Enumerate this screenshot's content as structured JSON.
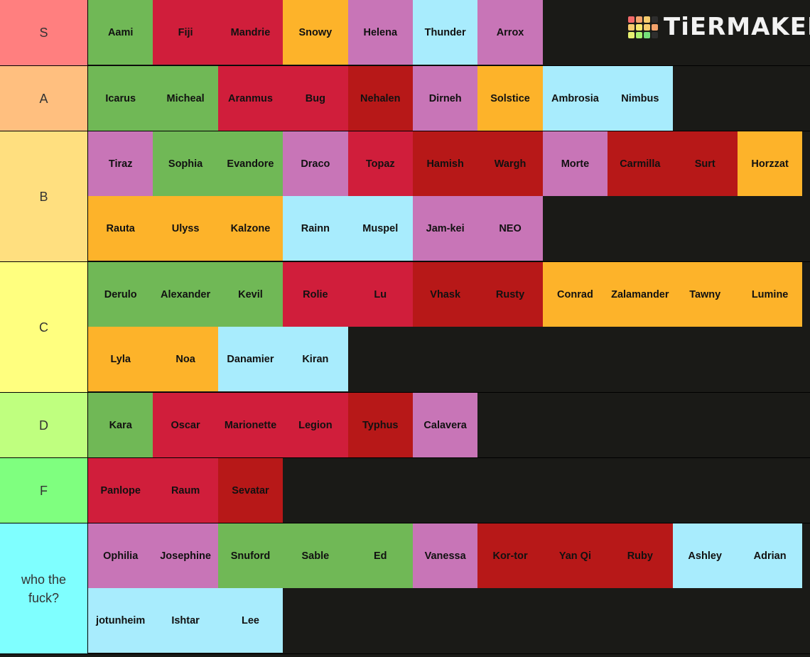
{
  "logo": {
    "text": "TiERMAKER",
    "grid_colors": [
      "#f26a6a",
      "#f3a26b",
      "#f6cc6e",
      "#2e2e2e",
      "#f6cc6e",
      "#f6e86f",
      "#f6cc6e",
      "#f3a26b",
      "#e6f070",
      "#a9f26e",
      "#75e07a",
      "#2e2e2e"
    ]
  },
  "colors": {
    "green": "#70b856",
    "red": "#d01e3b",
    "dred": "#b71818",
    "orange": "#fdb32a",
    "pink": "#c875b7",
    "cyan": "#a8ecfd"
  },
  "tiers": [
    {
      "label": "S",
      "color": "#ff7f7f",
      "items": [
        {
          "name": "Aami",
          "c": "green"
        },
        {
          "name": "Fiji",
          "c": "red"
        },
        {
          "name": "Mandrie",
          "c": "red"
        },
        {
          "name": "Snowy",
          "c": "orange"
        },
        {
          "name": "Helena",
          "c": "pink"
        },
        {
          "name": "Thunder",
          "c": "cyan"
        },
        {
          "name": "Arrox",
          "c": "pink"
        }
      ]
    },
    {
      "label": "A",
      "color": "#ffbf7f",
      "items": [
        {
          "name": "Icarus",
          "c": "green"
        },
        {
          "name": "Micheal",
          "c": "green"
        },
        {
          "name": "Aranmus",
          "c": "red"
        },
        {
          "name": "Bug",
          "c": "red"
        },
        {
          "name": "Nehalen",
          "c": "dred"
        },
        {
          "name": "Dirneh",
          "c": "pink"
        },
        {
          "name": "Solstice",
          "c": "orange"
        },
        {
          "name": "Ambrosia",
          "c": "cyan"
        },
        {
          "name": "Nimbus",
          "c": "cyan"
        }
      ]
    },
    {
      "label": "B",
      "color": "#ffdf7f",
      "items": [
        {
          "name": "Tiraz",
          "c": "pink"
        },
        {
          "name": "Sophia",
          "c": "green"
        },
        {
          "name": "Evandore",
          "c": "green"
        },
        {
          "name": "Draco",
          "c": "pink"
        },
        {
          "name": "Topaz",
          "c": "red"
        },
        {
          "name": "Hamish",
          "c": "dred"
        },
        {
          "name": "Wargh",
          "c": "dred"
        },
        {
          "name": "Morte",
          "c": "pink"
        },
        {
          "name": "Carmilla",
          "c": "dred"
        },
        {
          "name": "Surt",
          "c": "dred"
        },
        {
          "name": "Horzzat",
          "c": "orange"
        },
        {
          "name": "Rauta",
          "c": "orange"
        },
        {
          "name": "Ulyss",
          "c": "orange"
        },
        {
          "name": "Kalzone",
          "c": "orange"
        },
        {
          "name": "Rainn",
          "c": "cyan"
        },
        {
          "name": "Muspel",
          "c": "cyan"
        },
        {
          "name": "Jam-kei",
          "c": "pink"
        },
        {
          "name": "NEO",
          "c": "pink"
        }
      ]
    },
    {
      "label": "C",
      "color": "#ffff7f",
      "items": [
        {
          "name": "Derulo",
          "c": "green"
        },
        {
          "name": "Alexander",
          "c": "green"
        },
        {
          "name": "Kevil",
          "c": "green"
        },
        {
          "name": "Rolie",
          "c": "red"
        },
        {
          "name": "Lu",
          "c": "red"
        },
        {
          "name": "Vhask",
          "c": "dred"
        },
        {
          "name": "Rusty",
          "c": "dred"
        },
        {
          "name": "Conrad",
          "c": "orange"
        },
        {
          "name": "Zalamander",
          "c": "orange"
        },
        {
          "name": "Tawny",
          "c": "orange"
        },
        {
          "name": "Lumine",
          "c": "orange"
        },
        {
          "name": "Lyla",
          "c": "orange"
        },
        {
          "name": "Noa",
          "c": "orange"
        },
        {
          "name": "Danamier",
          "c": "cyan"
        },
        {
          "name": "Kiran",
          "c": "cyan"
        }
      ]
    },
    {
      "label": "D",
      "color": "#bfff7f",
      "items": [
        {
          "name": "Kara",
          "c": "green"
        },
        {
          "name": "Oscar",
          "c": "red"
        },
        {
          "name": "Marionette",
          "c": "red"
        },
        {
          "name": "Legion",
          "c": "red"
        },
        {
          "name": "Typhus",
          "c": "dred"
        },
        {
          "name": "Calavera",
          "c": "pink"
        }
      ]
    },
    {
      "label": "F",
      "color": "#7fff7f",
      "items": [
        {
          "name": "Panlope",
          "c": "red"
        },
        {
          "name": "Raum",
          "c": "red"
        },
        {
          "name": "Sevatar",
          "c": "dred"
        }
      ]
    },
    {
      "label": "who the fuck?",
      "color": "#7fffff",
      "items": [
        {
          "name": "Ophilia",
          "c": "pink"
        },
        {
          "name": "Josephine",
          "c": "pink"
        },
        {
          "name": "Snuford",
          "c": "green"
        },
        {
          "name": "Sable",
          "c": "green"
        },
        {
          "name": "Ed",
          "c": "green"
        },
        {
          "name": "Vanessa",
          "c": "pink"
        },
        {
          "name": "Kor-tor",
          "c": "dred"
        },
        {
          "name": "Yan Qi",
          "c": "dred"
        },
        {
          "name": "Ruby",
          "c": "dred"
        },
        {
          "name": "Ashley",
          "c": "cyan"
        },
        {
          "name": "Adrian",
          "c": "cyan"
        },
        {
          "name": "jotunheim",
          "c": "cyan"
        },
        {
          "name": "Ishtar",
          "c": "cyan"
        },
        {
          "name": "Lee",
          "c": "cyan"
        }
      ]
    }
  ]
}
